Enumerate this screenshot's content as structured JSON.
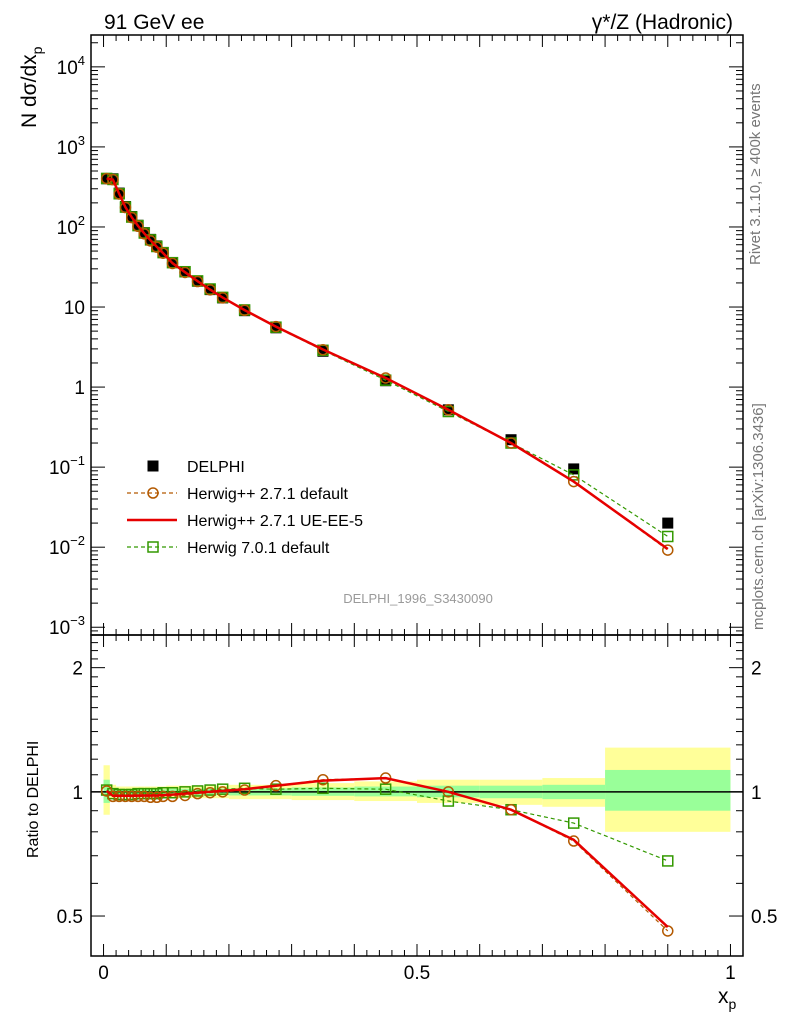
{
  "header": {
    "left": "91 GeV ee",
    "right": "γ*/Z (Hadronic)"
  },
  "side": {
    "rivet": "Rivet 3.1.10, ≥ 400k events",
    "mcplots": "mcplots.cern.ch [arXiv:1306.3436]"
  },
  "analysis_id": "DELPHI_1996_S3430090",
  "colors": {
    "data": "#000000",
    "herwig_default": "#b35900",
    "herwig_ue": "#e60000",
    "herwig7": "#339900",
    "band_outer": "#ffff99",
    "band_inner": "#99ff99"
  },
  "chart_data": [
    {
      "type": "scatter",
      "title": "91 GeV ee",
      "ylabel": "N dσ/dx_p",
      "ylabel_main": "N dσ/dx",
      "ylabel_sub": "p",
      "yscale": "log",
      "ylim": [
        0.0008,
        25000
      ],
      "xlim": [
        -0.02,
        1.02
      ],
      "y_ticks": [
        {
          "value": 10000,
          "base": "10",
          "exp": "4"
        },
        {
          "value": 1000,
          "base": "10",
          "exp": "3"
        },
        {
          "value": 100,
          "base": "10",
          "exp": "2"
        },
        {
          "value": 10,
          "base": "10",
          "exp": ""
        },
        {
          "value": 1,
          "base": "1",
          "exp": ""
        },
        {
          "value": 0.1,
          "base": "10",
          "exp": "−1"
        },
        {
          "value": 0.01,
          "base": "10",
          "exp": "−2"
        },
        {
          "value": 0.001,
          "base": "10",
          "exp": "−3"
        }
      ],
      "x": [
        0.005,
        0.015,
        0.025,
        0.035,
        0.045,
        0.055,
        0.065,
        0.075,
        0.085,
        0.095,
        0.11,
        0.13,
        0.15,
        0.17,
        0.19,
        0.225,
        0.275,
        0.35,
        0.45,
        0.55,
        0.65,
        0.75,
        0.9
      ],
      "series": [
        {
          "name": "DELPHI",
          "style": "data",
          "values": [
            400,
            400,
            265,
            180,
            135,
            105,
            85,
            70,
            58,
            48,
            36,
            27.5,
            21,
            16.5,
            13,
            9,
            5.5,
            2.8,
            1.2,
            0.52,
            0.22,
            0.095,
            0.02
          ]
        },
        {
          "name": "Herwig++ 2.7.1 default",
          "style": "circle",
          "values": [
            402,
            390,
            258,
            175,
            131,
            102,
            82,
            67,
            56,
            47,
            35,
            27,
            20.8,
            16.4,
            13,
            9.1,
            5.7,
            2.93,
            1.3,
            0.52,
            0.2,
            0.066,
            0.0092
          ]
        },
        {
          "name": "Herwig++ 2.7.1 UE-EE-5",
          "style": "line",
          "values": [
            402,
            390,
            259,
            176,
            132,
            103,
            83,
            68,
            56.5,
            47.2,
            35.3,
            27.2,
            21,
            16.5,
            13.1,
            9.15,
            5.7,
            2.95,
            1.3,
            0.52,
            0.2,
            0.066,
            0.0095
          ]
        },
        {
          "name": "Herwig 7.0.1 default",
          "style": "square",
          "values": [
            404,
            392,
            260,
            177,
            133,
            104,
            84,
            69,
            57,
            47.8,
            35.8,
            27.6,
            21.2,
            16.8,
            13.2,
            9.2,
            5.6,
            2.88,
            1.22,
            0.495,
            0.2,
            0.08,
            0.0136
          ]
        }
      ],
      "legend": [
        "DELPHI",
        "Herwig++ 2.7.1 default",
        "Herwig++ 2.7.1 UE-EE-5",
        "Herwig 7.0.1 default"
      ],
      "legend_position": "lower-left"
    },
    {
      "type": "scatter",
      "ylabel": "Ratio to DELPHI",
      "xlabel": "x_p",
      "xlabel_main": "x",
      "xlabel_sub": "p",
      "yscale": "log",
      "ylim": [
        0.4,
        2.4
      ],
      "y_tick_labels": [
        {
          "value": 2,
          "label": "2"
        },
        {
          "value": 1,
          "label": "1"
        },
        {
          "value": 0.5,
          "label": "0.5"
        }
      ],
      "x_tick_labels": [
        {
          "value": 0,
          "label": "0"
        },
        {
          "value": 0.5,
          "label": "0.5"
        },
        {
          "value": 1,
          "label": "1"
        }
      ],
      "reference": 1.0,
      "x": [
        0.005,
        0.015,
        0.025,
        0.035,
        0.045,
        0.055,
        0.065,
        0.075,
        0.085,
        0.095,
        0.11,
        0.13,
        0.15,
        0.17,
        0.19,
        0.225,
        0.275,
        0.35,
        0.45,
        0.55,
        0.65,
        0.75,
        0.9
      ],
      "bands": [
        {
          "x0": 0.0,
          "x1": 0.01,
          "outer": [
            0.88,
            1.16
          ],
          "inner": [
            0.94,
            1.07
          ]
        },
        {
          "x0": 0.01,
          "x1": 0.02,
          "outer": [
            0.96,
            1.04
          ],
          "inner": [
            0.98,
            1.02
          ]
        },
        {
          "x0": 0.02,
          "x1": 0.1,
          "outer": [
            0.97,
            1.03
          ],
          "inner": [
            0.985,
            1.015
          ]
        },
        {
          "x0": 0.1,
          "x1": 0.2,
          "outer": [
            0.965,
            1.035
          ],
          "inner": [
            0.982,
            1.018
          ]
        },
        {
          "x0": 0.2,
          "x1": 0.3,
          "outer": [
            0.96,
            1.04
          ],
          "inner": [
            0.98,
            1.02
          ]
        },
        {
          "x0": 0.3,
          "x1": 0.4,
          "outer": [
            0.955,
            1.05
          ],
          "inner": [
            0.978,
            1.025
          ]
        },
        {
          "x0": 0.4,
          "x1": 0.5,
          "outer": [
            0.95,
            1.06
          ],
          "inner": [
            0.975,
            1.03
          ]
        },
        {
          "x0": 0.5,
          "x1": 0.6,
          "outer": [
            0.94,
            1.07
          ],
          "inner": [
            0.97,
            1.035
          ]
        },
        {
          "x0": 0.6,
          "x1": 0.7,
          "outer": [
            0.93,
            1.07
          ],
          "inner": [
            0.965,
            1.035
          ]
        },
        {
          "x0": 0.7,
          "x1": 0.8,
          "outer": [
            0.92,
            1.08
          ],
          "inner": [
            0.96,
            1.04
          ]
        },
        {
          "x0": 0.8,
          "x1": 1.0,
          "outer": [
            0.8,
            1.28
          ],
          "inner": [
            0.9,
            1.13
          ]
        }
      ],
      "series": [
        {
          "name": "Herwig++ 2.7.1 default",
          "style": "circle",
          "values": [
            1.005,
            0.975,
            0.975,
            0.975,
            0.975,
            0.975,
            0.975,
            0.97,
            0.97,
            0.975,
            0.975,
            0.98,
            0.99,
            0.995,
            1.0,
            1.01,
            1.035,
            1.07,
            1.08,
            1.0,
            0.905,
            0.76,
            0.46
          ]
        },
        {
          "name": "Herwig++ 2.7.1 UE-EE-5",
          "style": "line",
          "values": [
            1.005,
            0.978,
            0.978,
            0.978,
            0.978,
            0.979,
            0.98,
            0.98,
            0.98,
            0.982,
            0.985,
            0.99,
            0.995,
            1.0,
            1.005,
            1.015,
            1.035,
            1.065,
            1.08,
            1.0,
            0.905,
            0.765,
            0.47
          ]
        },
        {
          "name": "Herwig 7.0.1 default",
          "style": "square",
          "values": [
            1.01,
            0.99,
            0.985,
            0.985,
            0.985,
            0.99,
            0.99,
            0.99,
            0.99,
            0.995,
            0.995,
            1.0,
            1.005,
            1.01,
            1.015,
            1.02,
            1.015,
            1.02,
            1.015,
            0.95,
            0.905,
            0.84,
            0.68
          ]
        }
      ]
    }
  ]
}
